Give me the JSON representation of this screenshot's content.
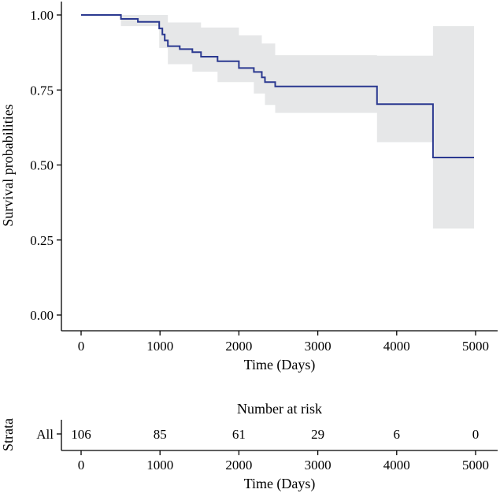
{
  "chart_data": [
    {
      "type": "line",
      "subtype": "kaplan-meier",
      "xlabel": "Time (Days)",
      "ylabel": "Survival probabilities",
      "xlim": [
        0,
        5000
      ],
      "ylim": [
        0,
        1
      ],
      "x_ticks": [
        0,
        1000,
        2000,
        3000,
        4000,
        5000
      ],
      "y_ticks": [
        0.0,
        0.25,
        0.5,
        0.75,
        1.0
      ],
      "y_tick_labels": [
        "0.00",
        "0.25",
        "0.50",
        "0.75",
        "1.00"
      ],
      "colors": {
        "line": "#2B3990",
        "ci_fill": "#E6E7E8"
      },
      "series": [
        {
          "name": "All",
          "steps": [
            {
              "x": 0,
              "y": 1.0
            },
            {
              "x": 505,
              "y": 0.987
            },
            {
              "x": 720,
              "y": 0.977
            },
            {
              "x": 990,
              "y": 0.955
            },
            {
              "x": 1030,
              "y": 0.935
            },
            {
              "x": 1060,
              "y": 0.915
            },
            {
              "x": 1100,
              "y": 0.896
            },
            {
              "x": 1250,
              "y": 0.886
            },
            {
              "x": 1410,
              "y": 0.876
            },
            {
              "x": 1520,
              "y": 0.861
            },
            {
              "x": 1730,
              "y": 0.846
            },
            {
              "x": 2000,
              "y": 0.823
            },
            {
              "x": 2190,
              "y": 0.81
            },
            {
              "x": 2290,
              "y": 0.792
            },
            {
              "x": 2330,
              "y": 0.776
            },
            {
              "x": 2460,
              "y": 0.762
            },
            {
              "x": 3750,
              "y": 0.703
            },
            {
              "x": 4460,
              "y": 0.525
            },
            {
              "x": 4980,
              "y": 0.525
            }
          ],
          "ci_upper": [
            {
              "x": 0,
              "y": 1.0
            },
            {
              "x": 1030,
              "y": 1.0
            },
            {
              "x": 1100,
              "y": 0.975
            },
            {
              "x": 1520,
              "y": 0.958
            },
            {
              "x": 2000,
              "y": 0.932
            },
            {
              "x": 2290,
              "y": 0.905
            },
            {
              "x": 2460,
              "y": 0.866
            },
            {
              "x": 3750,
              "y": 0.864
            },
            {
              "x": 4460,
              "y": 0.963
            },
            {
              "x": 4980,
              "y": 0.963
            }
          ],
          "ci_lower": [
            {
              "x": 0,
              "y": 1.0
            },
            {
              "x": 505,
              "y": 0.963
            },
            {
              "x": 990,
              "y": 0.89
            },
            {
              "x": 1100,
              "y": 0.836
            },
            {
              "x": 1410,
              "y": 0.811
            },
            {
              "x": 1730,
              "y": 0.776
            },
            {
              "x": 2190,
              "y": 0.738
            },
            {
              "x": 2330,
              "y": 0.7
            },
            {
              "x": 2460,
              "y": 0.674
            },
            {
              "x": 3750,
              "y": 0.576
            },
            {
              "x": 4460,
              "y": 0.288
            },
            {
              "x": 4980,
              "y": 0.288
            }
          ]
        }
      ]
    },
    {
      "type": "table",
      "title": "Number at risk",
      "ylabel": "Strata",
      "xlabel": "Time (Days)",
      "xlim": [
        0,
        5000
      ],
      "x_ticks": [
        0,
        1000,
        2000,
        3000,
        4000,
        5000
      ],
      "strata": [
        {
          "name": "All",
          "color": "#2B3990",
          "values": [
            106,
            85,
            61,
            29,
            6,
            0
          ]
        }
      ]
    }
  ]
}
